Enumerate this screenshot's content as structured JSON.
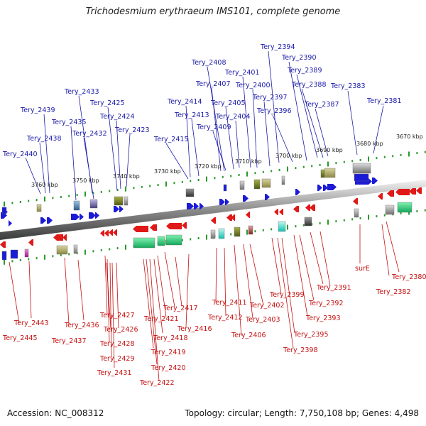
{
  "title": "Trichodesmium erythraeum IMS101, complete genome",
  "footer": {
    "accession": "Accession: NC_008312",
    "summary": "Topology: circular; Length: 7,750,108 bp; Genes: 4,498"
  },
  "colors": {
    "forward": "#1b1bd6",
    "reverse": "#e01818",
    "label_top": "#1a1aa8",
    "label_bottom": "#c41010",
    "tick": "#2a9a2a",
    "backbone": "#777777"
  },
  "scale_labels": [
    "3670 kbp",
    "3680 kbp",
    "3690 kbp",
    "3700 kbp",
    "3710 kbp",
    "3720 kbp",
    "3730 kbp",
    "3740 kbp",
    "3750 kbp",
    "3760 kbp"
  ],
  "top_labels": [
    "Tery_2394",
    "Tery_2390",
    "Tery_2408",
    "Tery_2401",
    "Tery_2389",
    "Tery_2407",
    "Tery_2400",
    "Tery_2388",
    "Tery_2383",
    "Tery_2433",
    "Tery_2397",
    "Tery_2425",
    "Tery_2414",
    "Tery_2405",
    "Tery_2387",
    "Tery_2381",
    "Tery_2439",
    "Tery_2413",
    "Tery_2404",
    "Tery_2396",
    "Tery_2435",
    "Tery_2424",
    "Tery_2409",
    "Tery_2432",
    "Tery_2423",
    "Tery_2438",
    "Tery_2415",
    "Tery_2440"
  ],
  "bottom_labels": [
    "surE",
    "Tery_2380",
    "Tery_2382",
    "Tery_2391",
    "Tery_2399",
    "Tery_2411",
    "Tery_2392",
    "Tery_2402",
    "Tery_2417",
    "Tery_2412",
    "Tery_2393",
    "Tery_2403",
    "Tery_2427",
    "Tery_2421",
    "Tery_2416",
    "Tery_2443",
    "Tery_2436",
    "Tery_2426",
    "Tery_2406",
    "Tery_2395",
    "Tery_2418",
    "Tery_2445",
    "Tery_2437",
    "Tery_2428",
    "Tery_2419",
    "Tery_2398",
    "Tery_2429",
    "Tery_2420",
    "Tery_2431",
    "Tery_2422"
  ]
}
